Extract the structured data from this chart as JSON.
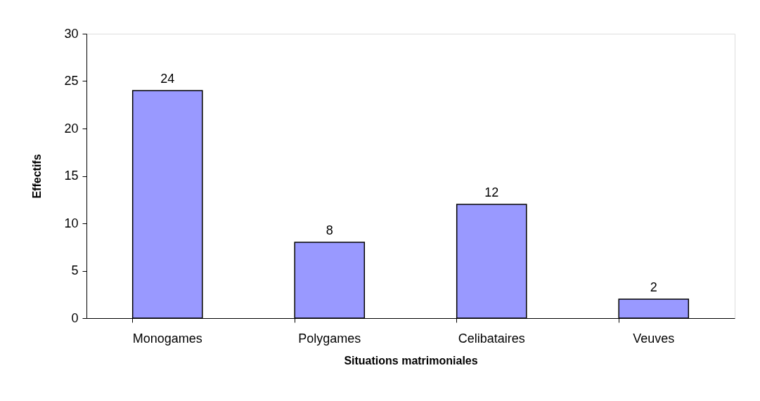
{
  "chart_data": {
    "type": "bar",
    "xlabel": "Situations matrimoniales",
    "ylabel": "Effectifs",
    "categories": [
      "Monogames",
      "Polygames",
      "Celibataires",
      "Veuves"
    ],
    "values": [
      24,
      8,
      12,
      2
    ],
    "color": "#9999ff",
    "ylim": [
      0,
      30
    ],
    "yticks": [
      0,
      5,
      10,
      15,
      20,
      25,
      30
    ],
    "grid": false,
    "data_labels": true
  }
}
